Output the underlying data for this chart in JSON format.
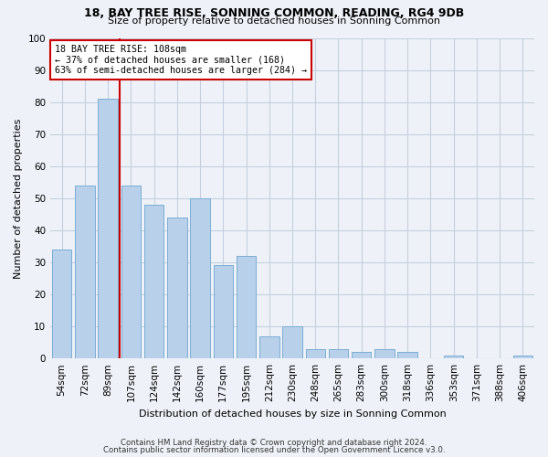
{
  "title1": "18, BAY TREE RISE, SONNING COMMON, READING, RG4 9DB",
  "title2": "Size of property relative to detached houses in Sonning Common",
  "xlabel": "Distribution of detached houses by size in Sonning Common",
  "ylabel": "Number of detached properties",
  "categories": [
    "54sqm",
    "72sqm",
    "89sqm",
    "107sqm",
    "124sqm",
    "142sqm",
    "160sqm",
    "177sqm",
    "195sqm",
    "212sqm",
    "230sqm",
    "248sqm",
    "265sqm",
    "283sqm",
    "300sqm",
    "318sqm",
    "336sqm",
    "353sqm",
    "371sqm",
    "388sqm",
    "406sqm"
  ],
  "values": [
    34,
    54,
    81,
    54,
    48,
    44,
    50,
    29,
    32,
    7,
    10,
    3,
    3,
    2,
    3,
    2,
    0,
    1,
    0,
    0,
    1
  ],
  "bar_color": "#b8d0ea",
  "bar_edge_color": "#7aadd4",
  "vline_color": "#cc0000",
  "vline_x": 2.5,
  "annotation_line1": "18 BAY TREE RISE: 108sqm",
  "annotation_line2": "← 37% of detached houses are smaller (168)",
  "annotation_line3": "63% of semi-detached houses are larger (284) →",
  "footer1": "Contains HM Land Registry data © Crown copyright and database right 2024.",
  "footer2": "Contains public sector information licensed under the Open Government Licence v3.0.",
  "ylim": [
    0,
    100
  ],
  "background_color": "#eef2f8",
  "plot_bg_color": "#eef2f8",
  "grid_color": "#c5cfe0"
}
